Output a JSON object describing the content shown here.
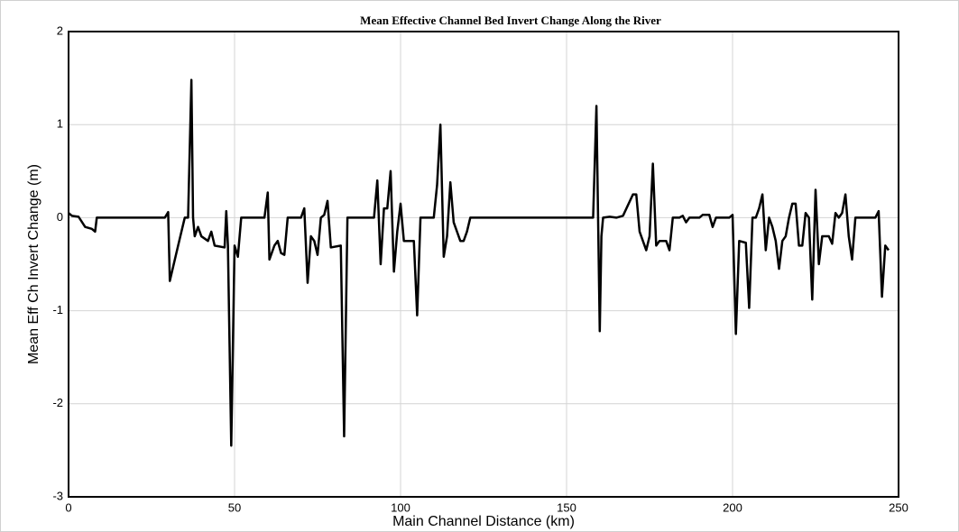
{
  "chart_data": {
    "type": "line",
    "title": "Mean Effective Channel Bed Invert Change Along the River",
    "xlabel": "Main Channel Distance (km)",
    "ylabel": "Mean Eff Ch Invert Change (m)",
    "xlim": [
      0,
      250
    ],
    "xticks": [
      0,
      50,
      100,
      150,
      200,
      250
    ],
    "ylim": [
      -3,
      2
    ],
    "yticks": [
      -3,
      -2,
      -1,
      0,
      1,
      2
    ],
    "grid": true,
    "x": [
      0,
      1,
      3,
      5,
      7,
      8,
      8.5,
      29,
      30,
      30.5,
      33,
      35,
      36,
      37,
      37.5,
      38,
      39,
      40,
      42,
      43,
      44,
      47,
      47.5,
      48,
      49,
      50,
      51,
      52,
      59,
      60,
      60.5,
      62,
      63,
      64,
      65,
      66,
      70,
      71,
      72,
      73,
      74,
      75,
      76,
      77,
      78,
      79,
      82,
      83,
      84,
      92,
      93,
      94,
      95,
      96,
      97,
      98,
      99,
      100,
      101,
      102,
      104,
      105,
      106,
      110,
      111,
      112,
      113,
      114,
      115,
      116,
      117,
      118,
      119,
      120,
      121,
      158,
      159,
      160,
      160.5,
      161,
      163,
      165,
      167,
      170,
      171,
      172,
      174,
      175,
      176,
      177,
      178,
      180,
      181,
      182,
      184,
      185,
      186,
      187,
      190,
      191,
      193,
      194,
      195,
      199,
      200,
      201,
      202,
      204,
      205,
      206,
      207,
      208,
      209,
      210,
      211,
      212,
      213,
      214,
      215,
      216,
      217,
      218,
      219,
      220,
      221,
      222,
      223,
      224,
      225,
      226,
      227,
      229,
      230,
      231,
      232,
      233,
      234,
      235,
      236,
      237,
      243,
      244,
      245,
      246,
      247
    ],
    "series": [
      {
        "color": "#000000",
        "values": [
          0.05,
          0.02,
          0.01,
          -0.1,
          -0.12,
          -0.15,
          0,
          0,
          0.06,
          -0.68,
          -0.3,
          0,
          0,
          1.48,
          0,
          -0.2,
          -0.1,
          -0.2,
          -0.25,
          -0.15,
          -0.3,
          -0.32,
          0.07,
          -0.3,
          -2.45,
          -0.3,
          -0.42,
          0,
          0,
          0.27,
          -0.45,
          -0.3,
          -0.25,
          -0.38,
          -0.4,
          0,
          0,
          0.1,
          -0.7,
          -0.2,
          -0.25,
          -0.4,
          0,
          0.03,
          0.18,
          -0.32,
          -0.3,
          -2.35,
          0,
          0,
          0.4,
          -0.5,
          0.1,
          0.1,
          0.5,
          -0.58,
          -0.15,
          0.15,
          -0.25,
          -0.25,
          -0.25,
          -1.05,
          0,
          0,
          0.35,
          1.0,
          -0.42,
          -0.2,
          0.38,
          -0.05,
          -0.15,
          -0.25,
          -0.25,
          -0.15,
          0,
          0,
          1.2,
          -1.22,
          -0.2,
          0,
          0.01,
          0,
          0.02,
          0.25,
          0.25,
          -0.15,
          -0.35,
          -0.2,
          0.58,
          -0.3,
          -0.25,
          -0.25,
          -0.35,
          0,
          0,
          0.02,
          -0.05,
          0,
          0,
          0.03,
          0.03,
          -0.1,
          0,
          0,
          0.03,
          -1.25,
          -0.25,
          -0.27,
          -0.97,
          0,
          0,
          0.1,
          0.25,
          -0.35,
          0,
          -0.1,
          -0.25,
          -0.55,
          -0.25,
          -0.2,
          0,
          0.15,
          0.15,
          -0.3,
          -0.3,
          0.05,
          0,
          -0.88,
          0.3,
          -0.5,
          -0.2,
          -0.2,
          -0.28,
          0.05,
          0,
          0.05,
          0.25,
          -0.2,
          -0.45,
          0,
          0,
          0.07,
          -0.85,
          -0.3,
          -0.35
        ]
      }
    ]
  }
}
